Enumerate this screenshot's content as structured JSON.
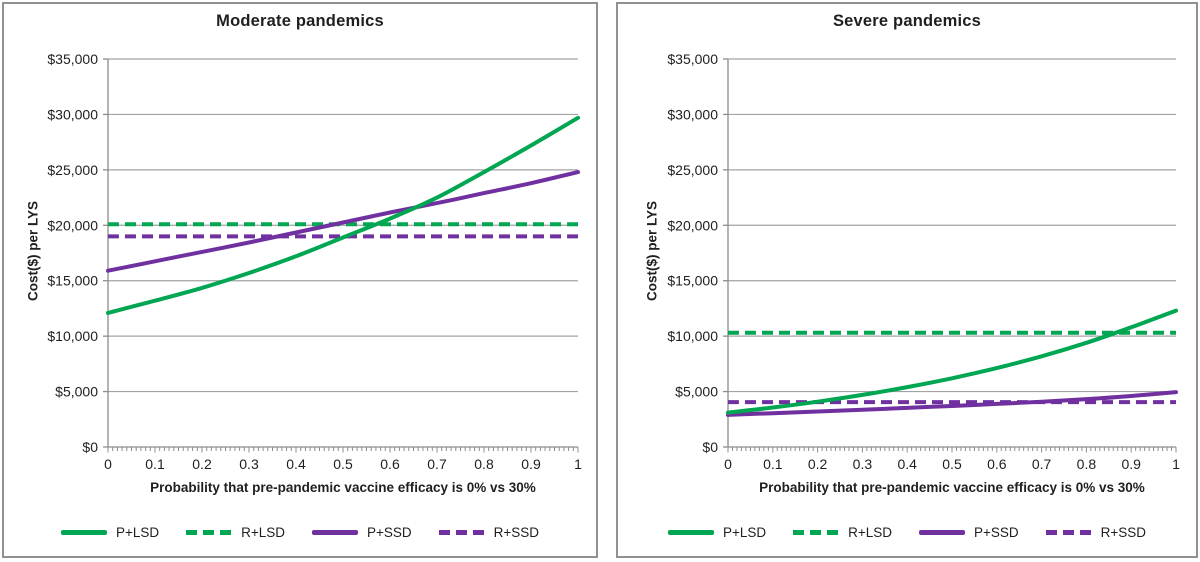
{
  "figure_title": "",
  "chart_data": [
    {
      "type": "line",
      "title": "Moderate pandemics",
      "xlabel": "Probability that pre-pandemic vaccine efficacy is 0% vs 30%",
      "ylabel": "Cost($) per LYS",
      "xlim": [
        0,
        1
      ],
      "ylim": [
        0,
        35000
      ],
      "grid": true,
      "grid_color": "#a3a3a3",
      "legend_position": "bottom",
      "x": [
        0,
        0.1,
        0.2,
        0.3,
        0.4,
        0.5,
        0.6,
        0.7,
        0.8,
        0.9,
        1
      ],
      "x_tick_labels": [
        "0",
        "0.1",
        "0.2",
        "0.3",
        "0.4",
        "0.5",
        "0.6",
        "0.7",
        "0.8",
        "0.9",
        "1"
      ],
      "y_tick_values": [
        0,
        5000,
        10000,
        15000,
        20000,
        25000,
        30000,
        35000
      ],
      "y_tick_labels": [
        "$0",
        "$5,000",
        "$10,000",
        "$15,000",
        "$20,000",
        "$25,000",
        "$30,000",
        "$35,000"
      ],
      "series": [
        {
          "name": "P+LSD",
          "color": "#00A651",
          "dash": false,
          "values": [
            12100,
            13200,
            14350,
            15700,
            17200,
            18900,
            20600,
            22500,
            24800,
            27200,
            29700
          ]
        },
        {
          "name": "R+LSD",
          "color": "#00A651",
          "dash": true,
          "values": [
            20100,
            20100,
            20100,
            20100,
            20100,
            20100,
            20100,
            20100,
            20100,
            20100,
            20100
          ]
        },
        {
          "name": "P+SSD",
          "color": "#7030A0",
          "dash": false,
          "values": [
            15900,
            16750,
            17600,
            18450,
            19350,
            20250,
            21150,
            22000,
            22900,
            23800,
            24800
          ]
        },
        {
          "name": "R+SSD",
          "color": "#7030A0",
          "dash": true,
          "values": [
            19000,
            19000,
            19000,
            19000,
            19000,
            19000,
            19000,
            19000,
            19000,
            19000,
            19000
          ]
        }
      ]
    },
    {
      "type": "line",
      "title": "Severe pandemics",
      "xlabel": "Probability that pre-pandemic vaccine efficacy is 0% vs 30%",
      "ylabel": "Cost($) per LYS",
      "xlim": [
        0,
        1
      ],
      "ylim": [
        0,
        35000
      ],
      "grid": true,
      "grid_color": "#a3a3a3",
      "legend_position": "bottom",
      "x": [
        0,
        0.1,
        0.2,
        0.3,
        0.4,
        0.5,
        0.6,
        0.7,
        0.8,
        0.9,
        1
      ],
      "x_tick_labels": [
        "0",
        "0.1",
        "0.2",
        "0.3",
        "0.4",
        "0.5",
        "0.6",
        "0.7",
        "0.8",
        "0.9",
        "1"
      ],
      "y_tick_values": [
        0,
        5000,
        10000,
        15000,
        20000,
        25000,
        30000,
        35000
      ],
      "y_tick_labels": [
        "$0",
        "$5,000",
        "$10,000",
        "$15,000",
        "$20,000",
        "$25,000",
        "$30,000",
        "$35,000"
      ],
      "series": [
        {
          "name": "P+LSD",
          "color": "#00A651",
          "dash": false,
          "values": [
            3100,
            3560,
            4090,
            4700,
            5400,
            6200,
            7120,
            8180,
            9400,
            10800,
            12300
          ]
        },
        {
          "name": "R+LSD",
          "color": "#00A651",
          "dash": true,
          "values": [
            10300,
            10300,
            10300,
            10300,
            10300,
            10300,
            10300,
            10300,
            10300,
            10300,
            10300
          ]
        },
        {
          "name": "P+SSD",
          "color": "#7030A0",
          "dash": false,
          "values": [
            2900,
            3050,
            3200,
            3360,
            3530,
            3700,
            3890,
            4090,
            4320,
            4600,
            4950
          ]
        },
        {
          "name": "R+SSD",
          "color": "#7030A0",
          "dash": true,
          "values": [
            4050,
            4050,
            4050,
            4050,
            4050,
            4050,
            4050,
            4050,
            4050,
            4050,
            4050
          ]
        }
      ]
    }
  ]
}
